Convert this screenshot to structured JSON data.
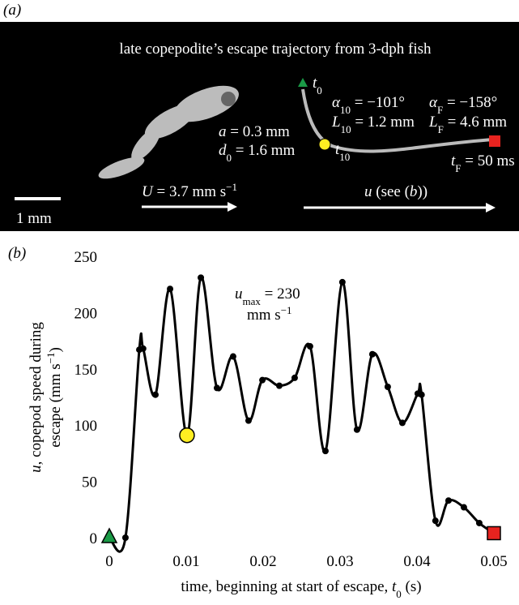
{
  "panel_a": {
    "label": "(a)",
    "title": "late copepodite’s escape trajectory from 3-dph fish",
    "a": [
      "a",
      " = 0.3 mm"
    ],
    "d0": [
      "d",
      "0",
      " = 1.6 mm"
    ],
    "U": [
      "U",
      " = 3.7 mm s",
      "−1"
    ],
    "scale": "1 mm",
    "t0": [
      "t",
      "0"
    ],
    "t10": [
      "t",
      "10"
    ],
    "alpha10": [
      "α",
      "10",
      " = −101°"
    ],
    "L10": [
      "L",
      "10",
      " = 1.2 mm"
    ],
    "alphaF": [
      "α",
      "F",
      " = −158°"
    ],
    "LF": [
      "L",
      "F",
      " = 4.6 mm"
    ],
    "tF": [
      "t",
      "F",
      " = 50 ms"
    ],
    "u": [
      "u",
      " (see (",
      "b",
      "))"
    ]
  },
  "chart_data": {
    "type": "line",
    "label": "(b)",
    "xlabel": [
      "time, beginning at start of escape, ",
      "t",
      "0",
      " (s)"
    ],
    "ylabel": [
      "u",
      ", copepod speed during",
      "escape (mm s",
      "−1",
      ")"
    ],
    "annotation": [
      "u",
      "max",
      " = 230",
      "mm s",
      "−1"
    ],
    "x": [
      0,
      0.0021,
      0.0039,
      0.0044,
      0.006,
      0.0079,
      0.0101,
      0.0119,
      0.014,
      0.0161,
      0.0181,
      0.0199,
      0.0221,
      0.0241,
      0.0261,
      0.0281,
      0.0303,
      0.0322,
      0.0342,
      0.0362,
      0.0381,
      0.0401,
      0.0406,
      0.0424,
      0.0441,
      0.0461,
      0.0481,
      0.05
    ],
    "series": [
      {
        "color": "#000000",
        "values": [
          0,
          0,
          167,
          168,
          127,
          221,
          91,
          231,
          133,
          161,
          104,
          140,
          135,
          142,
          170,
          77,
          227,
          96,
          163,
          134,
          102,
          128,
          127,
          15,
          33,
          27,
          13,
          4
        ]
      }
    ],
    "markers": [
      {
        "index": 0,
        "shape": "triangle",
        "color": "#1a9a46"
      },
      {
        "index": 6,
        "shape": "circle",
        "color": "#ffee22"
      },
      {
        "index": 27,
        "shape": "square",
        "color": "#e8231f"
      }
    ],
    "xlim": [
      0,
      0.05
    ],
    "xticks": [
      0,
      0.01,
      0.02,
      0.03,
      0.04,
      0.05
    ],
    "ylim": [
      0,
      250
    ],
    "yticks": [
      0,
      50,
      100,
      150,
      200,
      250
    ]
  }
}
